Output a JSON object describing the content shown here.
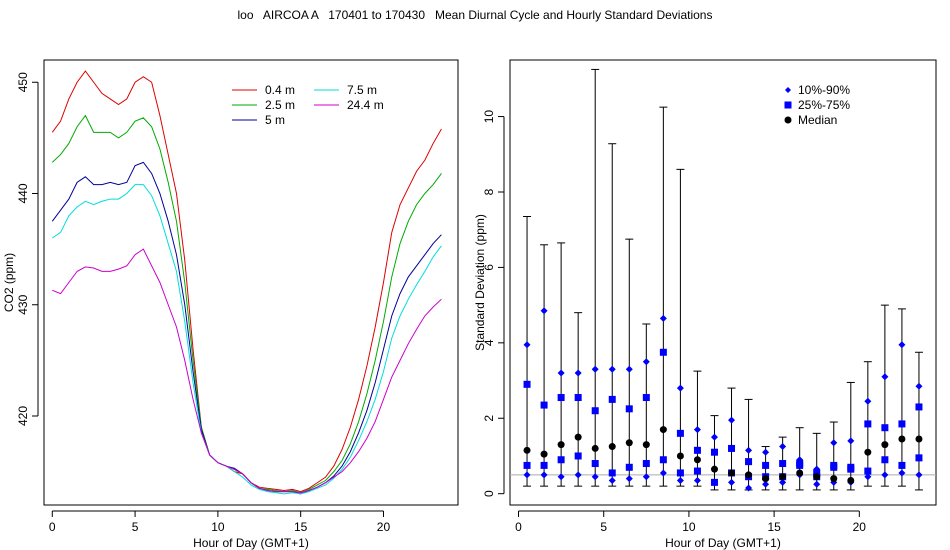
{
  "title": "loo   AIRCOA A   170401 to 170430   Mean Diurnal Cycle and Hourly Standard Deviations",
  "chart_data": [
    {
      "type": "line",
      "xlabel": "Hour of Day (GMT+1)",
      "ylabel": "CO2 (ppm)",
      "xlim": [
        -0.5,
        24.5
      ],
      "ylim": [
        412,
        452
      ],
      "xticks": [
        0,
        5,
        10,
        15,
        20
      ],
      "yticks": [
        420,
        430,
        440,
        450
      ],
      "legend_position": "top-center",
      "x": [
        0,
        0.5,
        1,
        1.5,
        2,
        2.5,
        3,
        3.5,
        4,
        4.5,
        5,
        5.5,
        6,
        6.5,
        7,
        7.5,
        8,
        8.5,
        9,
        9.5,
        10,
        10.5,
        11,
        11.5,
        12,
        12.5,
        13,
        13.5,
        14,
        14.5,
        15,
        15.5,
        16,
        16.5,
        17,
        17.5,
        18,
        18.5,
        19,
        19.5,
        20,
        20.5,
        21,
        21.5,
        22,
        22.5,
        23,
        23.5
      ],
      "series": [
        {
          "name": "0.4 m",
          "color": "#dd0000",
          "values": [
            445.5,
            446.5,
            448.5,
            450.0,
            451.0,
            450.0,
            449.0,
            448.5,
            448.0,
            448.5,
            450.0,
            450.5,
            450.0,
            447.0,
            443.5,
            440.0,
            434.0,
            426.0,
            419.0,
            416.5,
            415.8,
            415.5,
            415.0,
            414.8,
            414.0,
            413.6,
            413.5,
            413.4,
            413.3,
            413.4,
            413.2,
            413.5,
            414.0,
            414.5,
            415.5,
            417.0,
            419.0,
            421.5,
            424.5,
            428.0,
            432.0,
            436.5,
            439.0,
            440.5,
            442.0,
            443.0,
            444.5,
            445.8
          ]
        },
        {
          "name": "2.5 m",
          "color": "#00aa00",
          "values": [
            442.8,
            443.5,
            444.5,
            446.0,
            447.0,
            445.5,
            445.5,
            445.5,
            445.0,
            445.5,
            446.5,
            446.8,
            446.0,
            444.0,
            441.0,
            437.5,
            432.0,
            425.0,
            419.0,
            416.5,
            415.8,
            415.5,
            415.2,
            414.8,
            414.0,
            413.5,
            413.4,
            413.3,
            413.2,
            413.3,
            413.1,
            413.4,
            413.8,
            414.2,
            415.0,
            416.0,
            417.5,
            419.5,
            422.0,
            425.0,
            428.5,
            432.5,
            435.5,
            437.5,
            439.0,
            440.0,
            440.8,
            441.8
          ]
        },
        {
          "name": "5 m",
          "color": "#000099",
          "values": [
            437.5,
            438.5,
            439.5,
            441.0,
            441.5,
            440.8,
            440.8,
            441.0,
            440.8,
            441.0,
            442.5,
            442.8,
            441.8,
            440.0,
            437.5,
            434.5,
            430.0,
            424.0,
            418.8,
            416.5,
            415.8,
            415.5,
            415.3,
            414.8,
            414.0,
            413.5,
            413.3,
            413.2,
            413.2,
            413.2,
            413.0,
            413.3,
            413.6,
            414.0,
            414.6,
            415.5,
            416.8,
            418.5,
            420.5,
            423.0,
            426.0,
            429.0,
            431.0,
            432.5,
            433.5,
            434.5,
            435.5,
            436.3
          ]
        },
        {
          "name": "7.5 m",
          "color": "#00dddd",
          "values": [
            436.0,
            436.5,
            438.0,
            438.8,
            439.3,
            439.0,
            439.3,
            439.5,
            439.5,
            440.0,
            440.8,
            440.8,
            439.8,
            438.0,
            435.5,
            433.0,
            428.5,
            423.0,
            418.5,
            416.5,
            415.8,
            415.5,
            415.0,
            414.5,
            413.8,
            413.4,
            413.2,
            413.1,
            413.0,
            413.1,
            413.0,
            413.2,
            413.5,
            413.8,
            414.4,
            415.2,
            416.3,
            417.8,
            419.5,
            421.5,
            424.0,
            427.0,
            429.0,
            430.5,
            431.8,
            433.0,
            434.3,
            435.3
          ]
        },
        {
          "name": "24.4 m",
          "color": "#cc00cc",
          "values": [
            431.3,
            431.0,
            432.0,
            433.0,
            433.4,
            433.3,
            433.0,
            433.0,
            433.2,
            433.5,
            434.5,
            435.0,
            433.5,
            432.0,
            430.0,
            428.0,
            425.0,
            421.5,
            418.5,
            416.5,
            415.8,
            415.5,
            415.2,
            414.8,
            414.0,
            413.5,
            413.3,
            413.2,
            413.2,
            413.2,
            413.1,
            413.3,
            413.6,
            414.0,
            414.5,
            415.0,
            415.8,
            416.8,
            418.0,
            419.5,
            421.5,
            423.5,
            425.0,
            426.5,
            427.8,
            429.0,
            429.8,
            430.5
          ]
        }
      ]
    },
    {
      "type": "scatter",
      "xlabel": "Hour of Day (GMT+1)",
      "ylabel": "Standard Deviation (ppm)",
      "xlim": [
        -0.5,
        24.5
      ],
      "ylim": [
        -0.3,
        11.5
      ],
      "xticks": [
        0,
        5,
        10,
        15,
        20
      ],
      "yticks": [
        0,
        2,
        4,
        6,
        8,
        10
      ],
      "reference_line": 0.5,
      "legend_position": "top-right",
      "legend": [
        {
          "label": "10%-90%",
          "marker": "diamond",
          "color": "#0000ff"
        },
        {
          "label": "25%-75%",
          "marker": "square",
          "color": "#0000ff"
        },
        {
          "label": "Median",
          "marker": "circle",
          "color": "#000000"
        }
      ],
      "x": [
        0.5,
        1.5,
        2.5,
        3.5,
        4.5,
        5.5,
        6.5,
        7.5,
        8.5,
        9.5,
        10.5,
        11.5,
        12.5,
        13.5,
        14.5,
        15.5,
        16.5,
        17.5,
        18.5,
        19.5,
        20.5,
        21.5,
        22.5,
        23.5
      ],
      "min": [
        0.2,
        0.2,
        0.2,
        0.2,
        0.2,
        0.2,
        0.2,
        0.2,
        0.2,
        0.2,
        0.2,
        0.1,
        0.1,
        0.1,
        0.1,
        0.1,
        0.1,
        0.1,
        0.1,
        0.1,
        0.2,
        0.2,
        0.2,
        0.1
      ],
      "max": [
        7.35,
        6.6,
        6.65,
        4.8,
        11.25,
        9.28,
        6.75,
        4.5,
        10.25,
        8.6,
        3.25,
        2.07,
        2.8,
        2.5,
        1.25,
        1.5,
        1.75,
        1.6,
        1.9,
        2.95,
        3.5,
        5.0,
        4.9,
        3.75
      ],
      "p10": [
        0.5,
        0.5,
        0.45,
        0.5,
        0.45,
        0.35,
        0.4,
        0.45,
        0.55,
        0.35,
        0.35,
        0.3,
        0.3,
        0.15,
        0.25,
        0.3,
        0.5,
        0.25,
        0.3,
        0.3,
        0.45,
        0.5,
        0.55,
        0.5
      ],
      "p25": [
        0.75,
        0.75,
        0.9,
        1.0,
        0.8,
        0.55,
        0.7,
        0.8,
        0.9,
        0.55,
        0.6,
        0.3,
        0.55,
        0.45,
        0.45,
        0.45,
        0.8,
        0.45,
        0.7,
        0.7,
        0.6,
        0.9,
        0.75,
        0.95
      ],
      "median": [
        1.15,
        1.05,
        1.3,
        1.5,
        1.2,
        1.25,
        1.35,
        1.3,
        1.7,
        1.0,
        0.9,
        0.65,
        0.55,
        0.5,
        0.4,
        0.45,
        0.55,
        0.45,
        0.4,
        0.35,
        1.1,
        1.3,
        1.45,
        1.45
      ],
      "p75": [
        2.9,
        2.35,
        2.55,
        2.55,
        2.2,
        2.5,
        2.25,
        2.55,
        3.75,
        1.6,
        1.15,
        1.1,
        1.2,
        0.85,
        0.75,
        0.8,
        0.75,
        0.55,
        0.75,
        0.65,
        1.85,
        1.75,
        1.85,
        2.3
      ],
      "p90": [
        3.95,
        4.85,
        3.2,
        3.2,
        3.3,
        3.3,
        3.3,
        3.5,
        4.65,
        2.8,
        1.7,
        1.5,
        1.95,
        1.15,
        1.1,
        1.25,
        0.9,
        0.65,
        1.35,
        1.4,
        2.45,
        3.1,
        3.95,
        2.85
      ]
    }
  ]
}
